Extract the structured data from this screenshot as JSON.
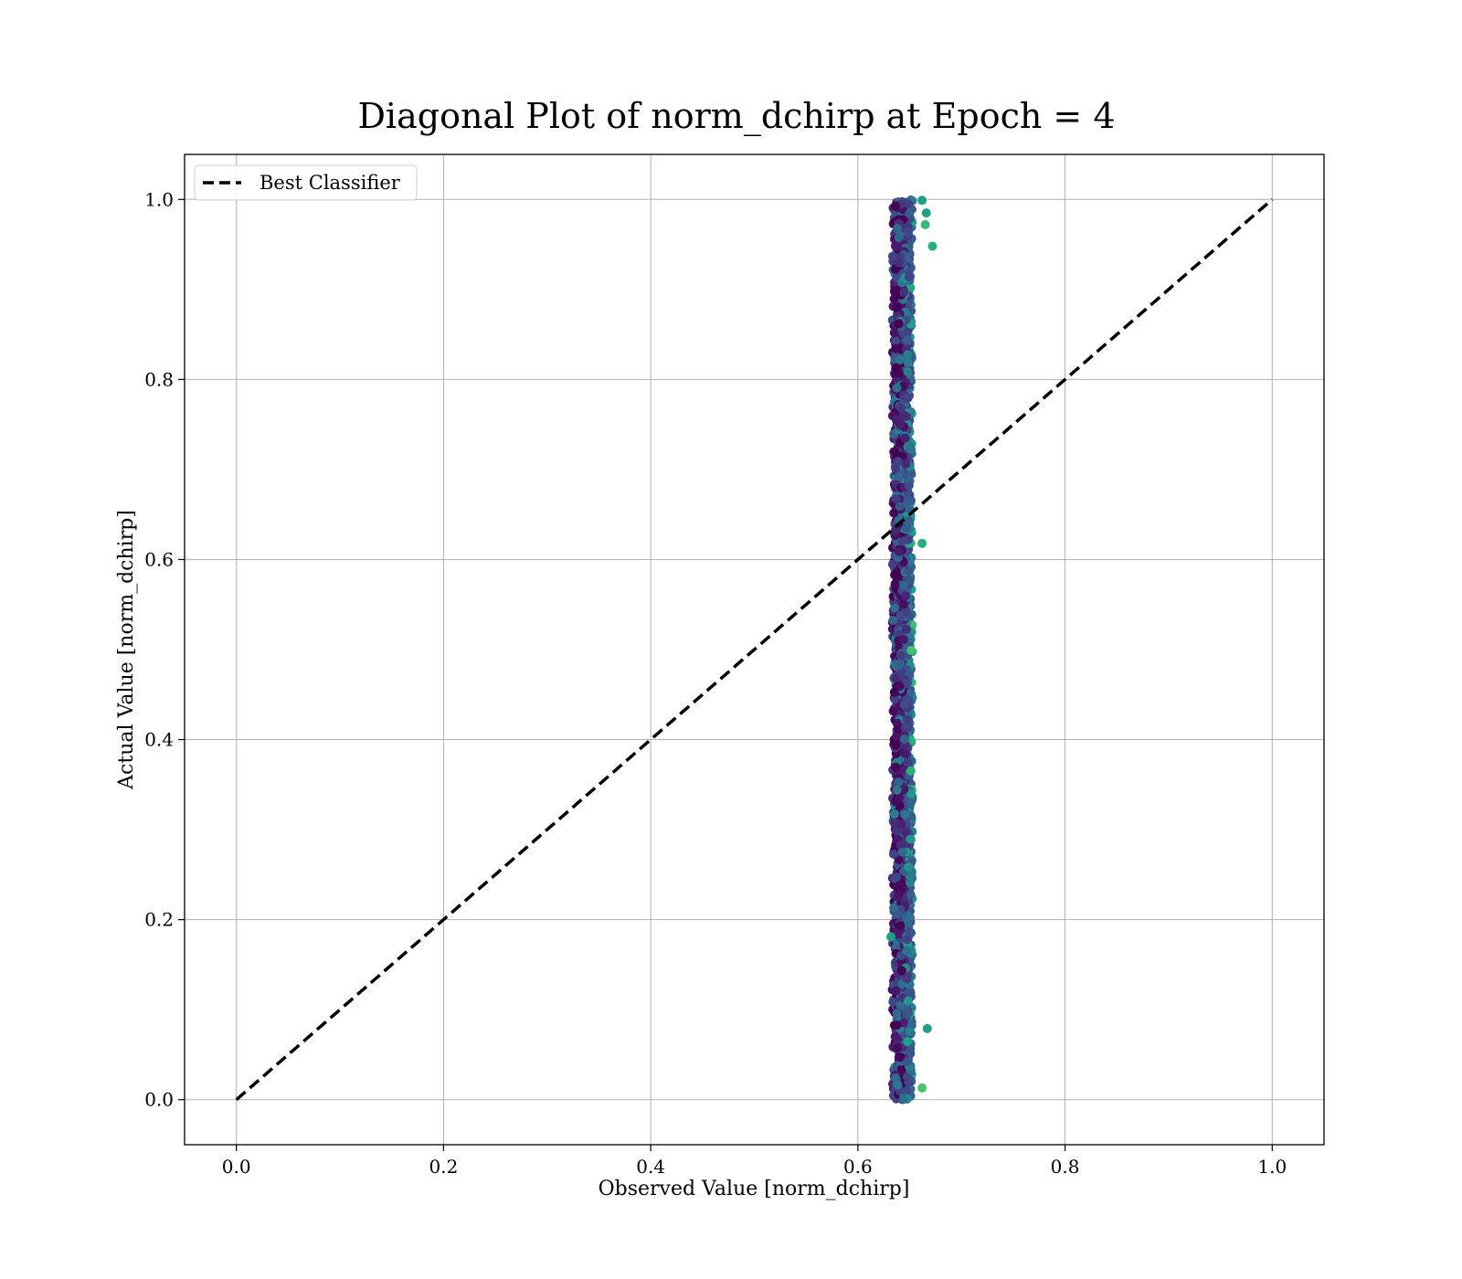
{
  "chart_data": {
    "type": "scatter",
    "title": "Diagonal Plot of norm_dchirp at Epoch = 4",
    "xlabel": "Observed Value [norm_dchirp]",
    "ylabel": "Actual Value [norm_dchirp]",
    "xlim": [
      -0.05,
      1.05
    ],
    "ylim": [
      -0.05,
      1.05
    ],
    "xticks": [
      "0.0",
      "0.2",
      "0.4",
      "0.6",
      "0.8",
      "1.0"
    ],
    "yticks": [
      "0.0",
      "0.2",
      "0.4",
      "0.6",
      "0.8",
      "1.0"
    ],
    "grid": true,
    "legend": {
      "placement": "top-left",
      "entries": [
        "Best Classifier"
      ]
    },
    "colormap": "viridis",
    "scatter": {
      "x_center": 0.643,
      "x_spread": 0.008,
      "y_range": [
        0.0,
        1.0
      ],
      "point_count": 2600,
      "outliers": [
        {
          "x": 0.672,
          "y": 0.948
        },
        {
          "x": 0.666,
          "y": 0.985
        },
        {
          "x": 0.665,
          "y": 0.972
        },
        {
          "x": 0.662,
          "y": 0.999
        },
        {
          "x": 0.662,
          "y": 0.618
        },
        {
          "x": 0.667,
          "y": 0.079
        },
        {
          "x": 0.662,
          "y": 0.013
        },
        {
          "x": 0.632,
          "y": 0.181
        }
      ]
    },
    "series": [
      {
        "name": "Best Classifier",
        "type": "line",
        "style": "dashed",
        "color": "#000000",
        "x": [
          0,
          1
        ],
        "y": [
          0,
          1
        ]
      }
    ]
  }
}
